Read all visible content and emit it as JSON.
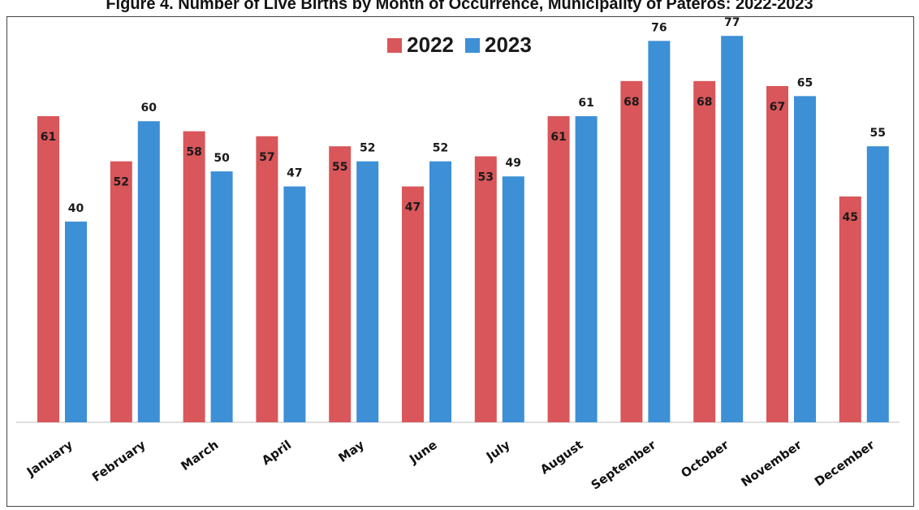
{
  "title": "Figure 4.  Number of Live Births by Month of Occurrence, Municipality of Pateros: 2022-2023",
  "chart_data": {
    "type": "bar",
    "categories": [
      "January",
      "February",
      "March",
      "April",
      "May",
      "June",
      "July",
      "August",
      "September",
      "October",
      "November",
      "December"
    ],
    "series": [
      {
        "name": "2022",
        "color": "#d9565a",
        "values": [
          61,
          52,
          58,
          57,
          55,
          47,
          53,
          61,
          68,
          68,
          67,
          45
        ]
      },
      {
        "name": "2023",
        "color": "#3d8fd6",
        "values": [
          40,
          60,
          50,
          47,
          52,
          52,
          49,
          61,
          76,
          77,
          65,
          55
        ]
      }
    ],
    "ylim": [
      0,
      80
    ],
    "grid": false,
    "legend_position": "top-center"
  }
}
